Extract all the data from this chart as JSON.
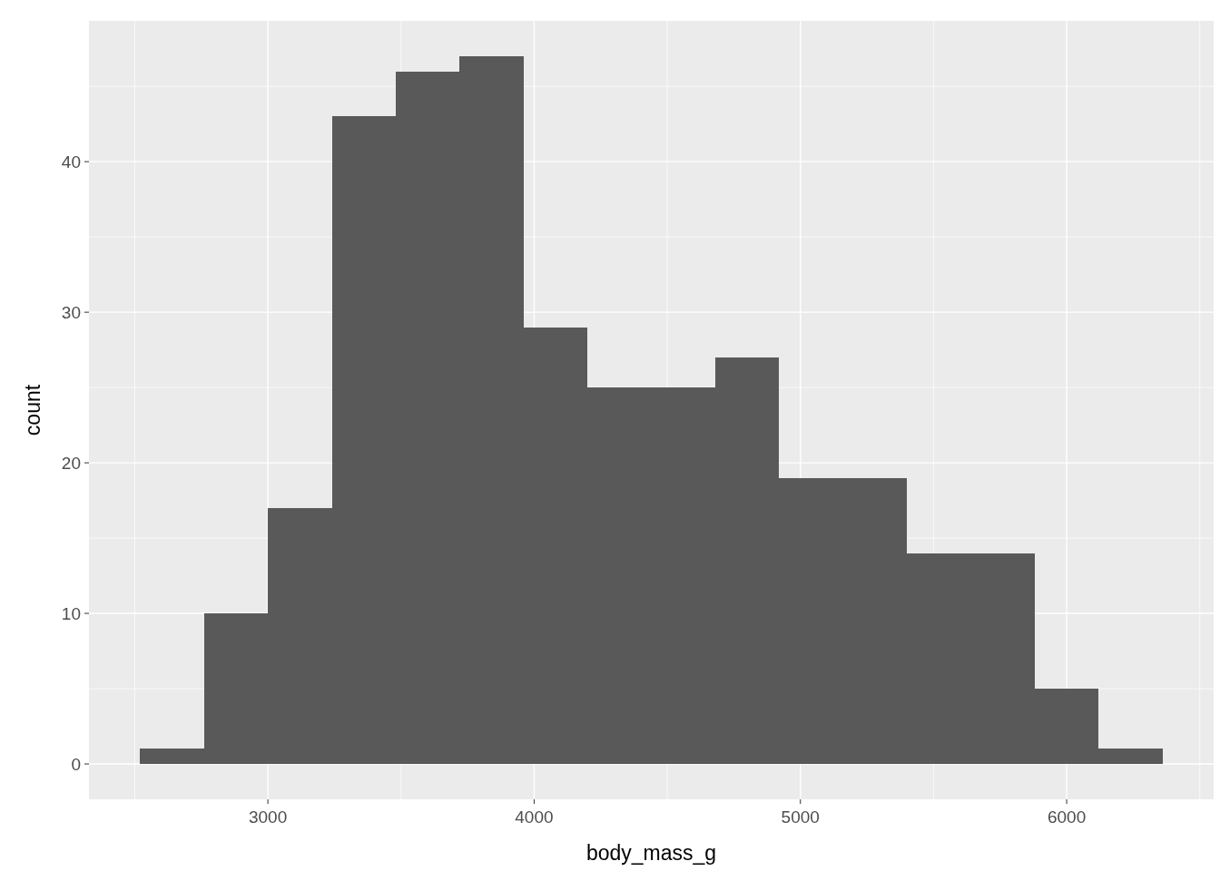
{
  "chart_data": {
    "type": "histogram",
    "xlabel": "body_mass_g",
    "ylabel": "count",
    "bins": [
      2520,
      2760,
      3000,
      3240,
      3480,
      3720,
      3960,
      4200,
      4440,
      4680,
      4920,
      5160,
      5400,
      5640,
      5880,
      6120,
      6360
    ],
    "values": [
      1,
      10,
      17,
      43,
      46,
      47,
      29,
      25,
      25,
      27,
      19,
      19,
      14,
      14,
      5,
      1
    ],
    "color": "#595959",
    "xlim": [
      2328,
      6552
    ],
    "xticks": [
      3000,
      4000,
      5000,
      6000
    ],
    "ylim": [
      -2.35,
      49.35
    ],
    "yticks": [
      0,
      10,
      20,
      30,
      40
    ],
    "grid": true
  }
}
